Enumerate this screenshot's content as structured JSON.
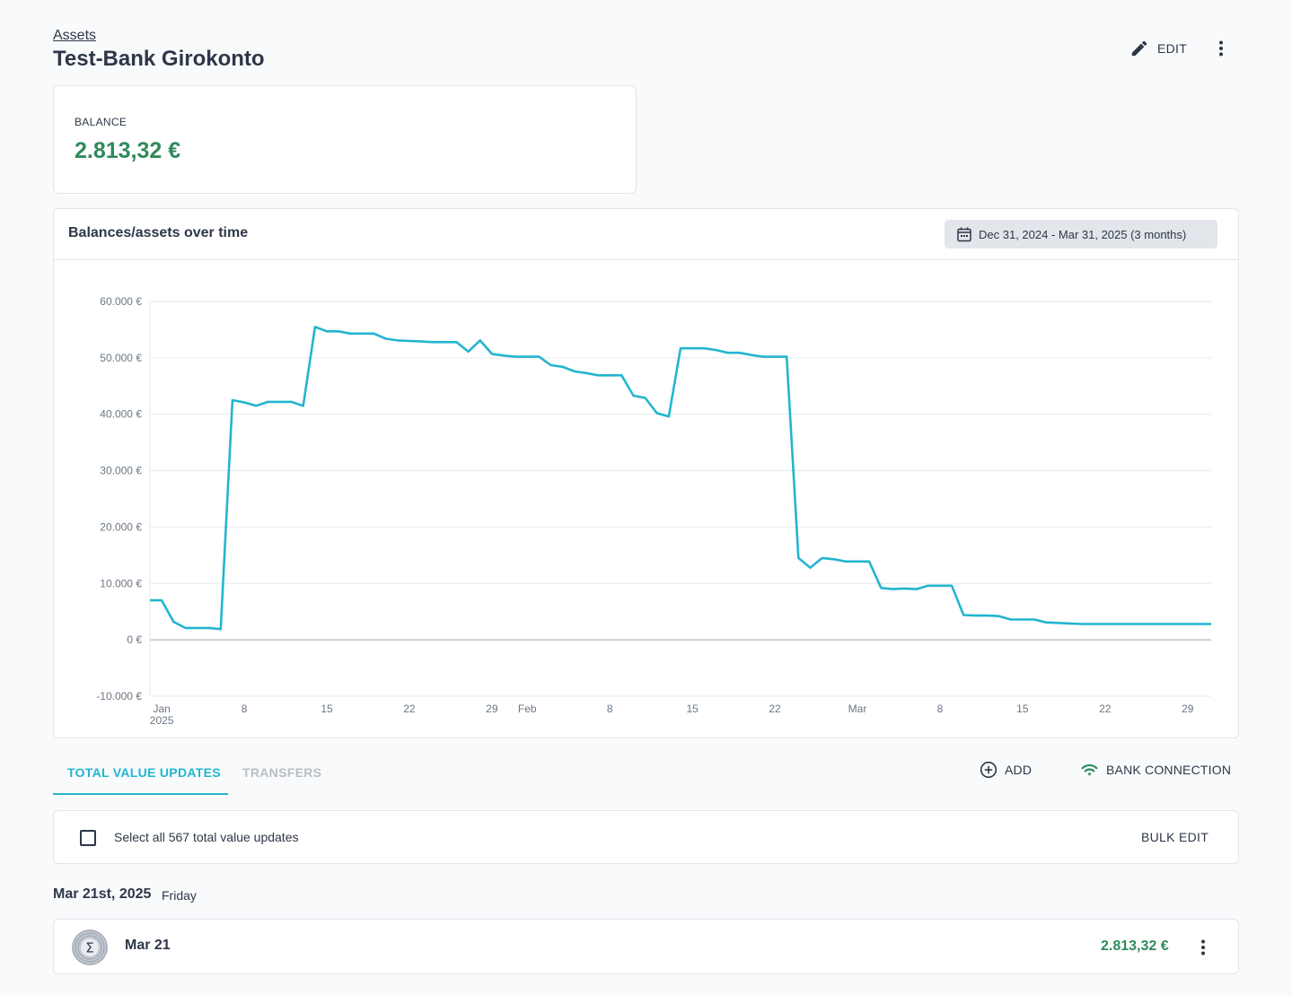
{
  "breadcrumb": "Assets",
  "title": "Test-Bank Girokonto",
  "header": {
    "edit_label": "EDIT",
    "edit_icon": "pencil-icon",
    "more_icon": "more-vert-icon"
  },
  "balance": {
    "label": "BALANCE",
    "value": "2.813,32 €",
    "color": "#2f8a5b"
  },
  "chart_card": {
    "title": "Balances/assets over time",
    "date_range": "Dec 31, 2024 - Mar 31, 2025 (3 months)",
    "date_icon": "calendar-icon"
  },
  "chart_data": {
    "type": "line",
    "line_color": "#22b5cf",
    "ylim": [
      -10000,
      60000
    ],
    "y_ticks": [
      60000,
      50000,
      40000,
      30000,
      20000,
      10000,
      0,
      -10000
    ],
    "y_tick_labels": [
      "60.000 €",
      "50.000 €",
      "40.000 €",
      "30.000 €",
      "20.000 €",
      "10.000 €",
      "0 €",
      "-10.000 €"
    ],
    "x_start": "2024-12-31",
    "x_end": "2025-03-31",
    "x_ticks": [
      {
        "date": "2025-01-01",
        "label": "Jan",
        "sub": "2025"
      },
      {
        "date": "2025-01-08",
        "label": "8",
        "sub": ""
      },
      {
        "date": "2025-01-15",
        "label": "15",
        "sub": ""
      },
      {
        "date": "2025-01-22",
        "label": "22",
        "sub": ""
      },
      {
        "date": "2025-01-29",
        "label": "29",
        "sub": ""
      },
      {
        "date": "2025-02-01",
        "label": "Feb",
        "sub": ""
      },
      {
        "date": "2025-02-08",
        "label": "8",
        "sub": ""
      },
      {
        "date": "2025-02-15",
        "label": "15",
        "sub": ""
      },
      {
        "date": "2025-02-22",
        "label": "22",
        "sub": ""
      },
      {
        "date": "2025-03-01",
        "label": "Mar",
        "sub": ""
      },
      {
        "date": "2025-03-08",
        "label": "8",
        "sub": ""
      },
      {
        "date": "2025-03-15",
        "label": "15",
        "sub": ""
      },
      {
        "date": "2025-03-22",
        "label": "22",
        "sub": ""
      },
      {
        "date": "2025-03-29",
        "label": "29",
        "sub": ""
      }
    ],
    "grid": true,
    "series": [
      {
        "values": [
          [
            "2024-12-31",
            7000
          ],
          [
            "2025-01-01",
            7000
          ],
          [
            "2025-01-02",
            3200
          ],
          [
            "2025-01-03",
            2100
          ],
          [
            "2025-01-04",
            2100
          ],
          [
            "2025-01-05",
            2100
          ],
          [
            "2025-01-06",
            1900
          ],
          [
            "2025-01-07",
            42500
          ],
          [
            "2025-01-08",
            42100
          ],
          [
            "2025-01-09",
            41500
          ],
          [
            "2025-01-10",
            42200
          ],
          [
            "2025-01-11",
            42200
          ],
          [
            "2025-01-12",
            42200
          ],
          [
            "2025-01-13",
            41500
          ],
          [
            "2025-01-14",
            55500
          ],
          [
            "2025-01-15",
            54700
          ],
          [
            "2025-01-16",
            54700
          ],
          [
            "2025-01-17",
            54300
          ],
          [
            "2025-01-18",
            54300
          ],
          [
            "2025-01-19",
            54300
          ],
          [
            "2025-01-20",
            53400
          ],
          [
            "2025-01-21",
            53100
          ],
          [
            "2025-01-22",
            53000
          ],
          [
            "2025-01-23",
            52900
          ],
          [
            "2025-01-24",
            52800
          ],
          [
            "2025-01-25",
            52800
          ],
          [
            "2025-01-26",
            52800
          ],
          [
            "2025-01-27",
            51100
          ],
          [
            "2025-01-28",
            53100
          ],
          [
            "2025-01-29",
            50700
          ],
          [
            "2025-01-30",
            50400
          ],
          [
            "2025-01-31",
            50200
          ],
          [
            "2025-02-01",
            50200
          ],
          [
            "2025-02-02",
            50200
          ],
          [
            "2025-02-03",
            48700
          ],
          [
            "2025-02-04",
            48400
          ],
          [
            "2025-02-05",
            47600
          ],
          [
            "2025-02-06",
            47300
          ],
          [
            "2025-02-07",
            46900
          ],
          [
            "2025-02-08",
            46900
          ],
          [
            "2025-02-09",
            46900
          ],
          [
            "2025-02-10",
            43300
          ],
          [
            "2025-02-11",
            42900
          ],
          [
            "2025-02-12",
            40200
          ],
          [
            "2025-02-13",
            39600
          ],
          [
            "2025-02-14",
            51700
          ],
          [
            "2025-02-15",
            51700
          ],
          [
            "2025-02-16",
            51700
          ],
          [
            "2025-02-17",
            51400
          ],
          [
            "2025-02-18",
            50900
          ],
          [
            "2025-02-19",
            50900
          ],
          [
            "2025-02-20",
            50500
          ],
          [
            "2025-02-21",
            50200
          ],
          [
            "2025-02-22",
            50200
          ],
          [
            "2025-02-23",
            50200
          ],
          [
            "2025-02-24",
            14500
          ],
          [
            "2025-02-25",
            12800
          ],
          [
            "2025-02-26",
            14500
          ],
          [
            "2025-02-27",
            14300
          ],
          [
            "2025-02-28",
            13900
          ],
          [
            "2025-03-01",
            13900
          ],
          [
            "2025-03-02",
            13900
          ],
          [
            "2025-03-03",
            9200
          ],
          [
            "2025-03-04",
            9000
          ],
          [
            "2025-03-05",
            9100
          ],
          [
            "2025-03-06",
            9000
          ],
          [
            "2025-03-07",
            9600
          ],
          [
            "2025-03-08",
            9600
          ],
          [
            "2025-03-09",
            9600
          ],
          [
            "2025-03-10",
            4400
          ],
          [
            "2025-03-11",
            4300
          ],
          [
            "2025-03-12",
            4300
          ],
          [
            "2025-03-13",
            4200
          ],
          [
            "2025-03-14",
            3600
          ],
          [
            "2025-03-15",
            3600
          ],
          [
            "2025-03-16",
            3600
          ],
          [
            "2025-03-17",
            3100
          ],
          [
            "2025-03-18",
            3000
          ],
          [
            "2025-03-19",
            2900
          ],
          [
            "2025-03-20",
            2813
          ],
          [
            "2025-03-21",
            2813
          ],
          [
            "2025-03-22",
            2813
          ],
          [
            "2025-03-23",
            2813
          ],
          [
            "2025-03-24",
            2813
          ],
          [
            "2025-03-25",
            2813
          ],
          [
            "2025-03-26",
            2813
          ],
          [
            "2025-03-27",
            2813
          ],
          [
            "2025-03-28",
            2813
          ],
          [
            "2025-03-29",
            2813
          ],
          [
            "2025-03-30",
            2813
          ],
          [
            "2025-03-31",
            2813
          ]
        ]
      }
    ]
  },
  "tabs": [
    {
      "label": "TOTAL VALUE UPDATES",
      "active": true
    },
    {
      "label": "TRANSFERS",
      "active": false
    }
  ],
  "actions": {
    "add_label": "ADD",
    "add_icon": "add-circle-icon",
    "bank_label": "BANK CONNECTION",
    "bank_icon": "wifi-icon"
  },
  "select_bar": {
    "label": "Select all 567 total value updates",
    "bulk_edit_label": "BULK EDIT"
  },
  "date_group": {
    "title": "Mar 21st, 2025",
    "weekday": "Friday"
  },
  "entry": {
    "title": "Mar 21",
    "amount": "2.813,32 €",
    "avatar_icon": "sigma-icon"
  }
}
